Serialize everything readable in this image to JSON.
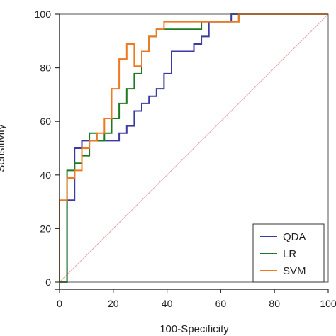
{
  "chart_data": {
    "type": "line",
    "xlabel": "100-Specificity",
    "ylabel": "Sensitivity",
    "xlim": [
      0,
      100
    ],
    "ylim": [
      0,
      100
    ],
    "x_ticks": [
      0,
      20,
      40,
      60,
      80,
      100
    ],
    "y_ticks": [
      0,
      20,
      40,
      60,
      80,
      100
    ],
    "grid": false,
    "legend_position": "bottom-right",
    "reference_line": {
      "from": [
        0,
        0
      ],
      "to": [
        100,
        100
      ],
      "color": "#e8a6a6"
    },
    "series": [
      {
        "name": "QDA",
        "color": "#3a3aa0",
        "points": [
          [
            0,
            0
          ],
          [
            2.8,
            0
          ],
          [
            2.8,
            30.6
          ],
          [
            5.6,
            30.6
          ],
          [
            5.6,
            50
          ],
          [
            8.3,
            50
          ],
          [
            8.3,
            52.8
          ],
          [
            13.9,
            52.8
          ],
          [
            13.9,
            52.8
          ],
          [
            22.2,
            52.8
          ],
          [
            22.2,
            55.6
          ],
          [
            25,
            55.6
          ],
          [
            25,
            58.3
          ],
          [
            27.8,
            58.3
          ],
          [
            27.8,
            63.9
          ],
          [
            30.6,
            63.9
          ],
          [
            30.6,
            66.7
          ],
          [
            33.3,
            66.7
          ],
          [
            33.3,
            69.4
          ],
          [
            36.1,
            69.4
          ],
          [
            36.1,
            72.2
          ],
          [
            38.9,
            72.2
          ],
          [
            38.9,
            77.8
          ],
          [
            41.7,
            77.8
          ],
          [
            41.7,
            86.1
          ],
          [
            50,
            86.1
          ],
          [
            50,
            88.9
          ],
          [
            52.8,
            88.9
          ],
          [
            52.8,
            91.7
          ],
          [
            55.6,
            91.7
          ],
          [
            55.6,
            97.2
          ],
          [
            63.9,
            97.2
          ],
          [
            63.9,
            100
          ],
          [
            100,
            100
          ]
        ]
      },
      {
        "name": "LR",
        "color": "#1e7a1e",
        "points": [
          [
            0,
            0
          ],
          [
            2.8,
            0
          ],
          [
            2.8,
            30.6
          ],
          [
            2.8,
            41.7
          ],
          [
            5.6,
            41.7
          ],
          [
            5.6,
            44.4
          ],
          [
            8.3,
            44.4
          ],
          [
            8.3,
            47.2
          ],
          [
            11.1,
            47.2
          ],
          [
            11.1,
            55.6
          ],
          [
            13.9,
            55.6
          ],
          [
            13.9,
            52.8
          ],
          [
            16.7,
            52.8
          ],
          [
            16.7,
            55.6
          ],
          [
            19.4,
            55.6
          ],
          [
            19.4,
            61.1
          ],
          [
            22.2,
            61.1
          ],
          [
            22.2,
            66.7
          ],
          [
            25,
            66.7
          ],
          [
            25,
            72.2
          ],
          [
            27.8,
            72.2
          ],
          [
            27.8,
            77.8
          ],
          [
            30.6,
            77.8
          ],
          [
            30.6,
            86.1
          ],
          [
            33.3,
            86.1
          ],
          [
            33.3,
            91.7
          ],
          [
            36.1,
            91.7
          ],
          [
            36.1,
            94.4
          ],
          [
            47.2,
            94.4
          ],
          [
            47.2,
            94.4
          ],
          [
            52.8,
            94.4
          ],
          [
            52.8,
            97.2
          ],
          [
            66.7,
            97.2
          ],
          [
            66.7,
            100
          ],
          [
            100,
            100
          ]
        ]
      },
      {
        "name": "SVM",
        "color": "#f07820",
        "points": [
          [
            0,
            0
          ],
          [
            0,
            30.6
          ],
          [
            2.8,
            30.6
          ],
          [
            2.8,
            38.9
          ],
          [
            5.6,
            38.9
          ],
          [
            5.6,
            41.7
          ],
          [
            8.3,
            41.7
          ],
          [
            8.3,
            50
          ],
          [
            11.1,
            50
          ],
          [
            11.1,
            52.8
          ],
          [
            13.9,
            52.8
          ],
          [
            13.9,
            55.6
          ],
          [
            16.7,
            55.6
          ],
          [
            16.7,
            61.1
          ],
          [
            19.4,
            61.1
          ],
          [
            19.4,
            72.2
          ],
          [
            22.2,
            72.2
          ],
          [
            22.2,
            83.3
          ],
          [
            25,
            83.3
          ],
          [
            25,
            88.9
          ],
          [
            27.8,
            88.9
          ],
          [
            27.8,
            80.6
          ],
          [
            30.6,
            80.6
          ],
          [
            30.6,
            86.1
          ],
          [
            33.3,
            86.1
          ],
          [
            33.3,
            91.7
          ],
          [
            36.1,
            91.7
          ],
          [
            36.1,
            94.4
          ],
          [
            38.9,
            94.4
          ],
          [
            38.9,
            97.2
          ],
          [
            61.1,
            97.2
          ],
          [
            61.1,
            97.2
          ],
          [
            66.7,
            97.2
          ],
          [
            66.7,
            100
          ],
          [
            100,
            100
          ]
        ]
      }
    ]
  }
}
